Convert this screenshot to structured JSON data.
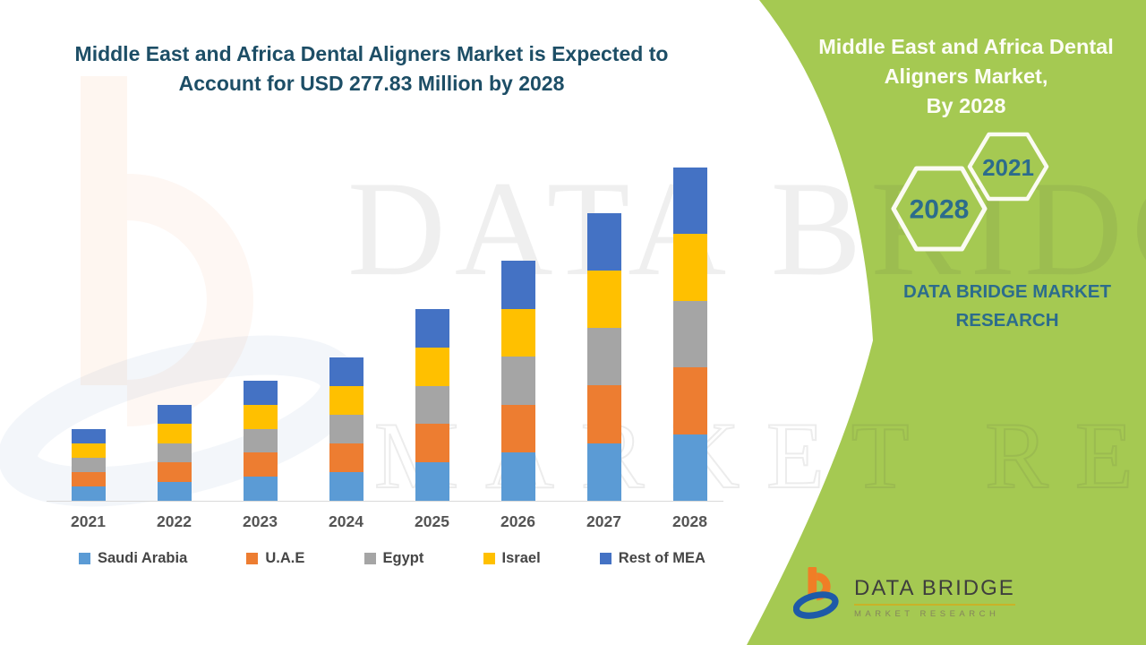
{
  "header": {
    "title_lines": [
      "Middle East and Africa Dental Aligners Market is Expected to",
      "Account for USD 277.83 Million by 2028"
    ],
    "title_color": "#1D4E66"
  },
  "chart_data": {
    "type": "bar",
    "stacked": true,
    "title": "Middle East and Africa Dental Aligners Market is Expected to Account for USD 277.83 Million by 2028",
    "unit": "USD Million",
    "categories": [
      "2021",
      "2022",
      "2023",
      "2024",
      "2025",
      "2026",
      "2027",
      "2028"
    ],
    "series": [
      {
        "name": "Saudi Arabia",
        "color": "#5B9BD5",
        "values": [
          12,
          16,
          20,
          24,
          32,
          40,
          48,
          55.57
        ]
      },
      {
        "name": "U.A.E",
        "color": "#ED7D31",
        "values": [
          12,
          16,
          20,
          24,
          32,
          40,
          48,
          55.57
        ]
      },
      {
        "name": "Egypt",
        "color": "#A5A5A5",
        "values": [
          12,
          16,
          20,
          24,
          32,
          40,
          48,
          55.57
        ]
      },
      {
        "name": "Israel",
        "color": "#FFC000",
        "values": [
          12,
          16,
          20,
          24,
          32,
          40,
          48,
          55.57
        ]
      },
      {
        "name": "Rest of MEA",
        "color": "#4472C4",
        "values": [
          12,
          16,
          20,
          24,
          32,
          40,
          48,
          55.57
        ]
      }
    ],
    "totals": [
      60,
      80,
      100,
      120,
      160,
      200,
      240,
      277.83
    ],
    "ylim": [
      0,
      280
    ],
    "gridlines": false,
    "legend_position": "bottom",
    "axis_label_color": "#545454"
  },
  "right_panel": {
    "background_color": "#A5C952",
    "text_color": "#2C6C8C",
    "title_lines": [
      "Middle East and Africa Dental",
      "Aligners Market,",
      "By 2028"
    ],
    "hexagons": [
      {
        "label": "2021"
      },
      {
        "label": "2028"
      }
    ],
    "brand": "DATA BRIDGE MARKET RESEARCH"
  },
  "watermark": {
    "line1": "DATA BRIDGE",
    "line2": "MARKET RESEARCH"
  },
  "footer_logo": {
    "brand": "DATA BRIDGE",
    "tagline": "MARKET RESEARCH"
  }
}
